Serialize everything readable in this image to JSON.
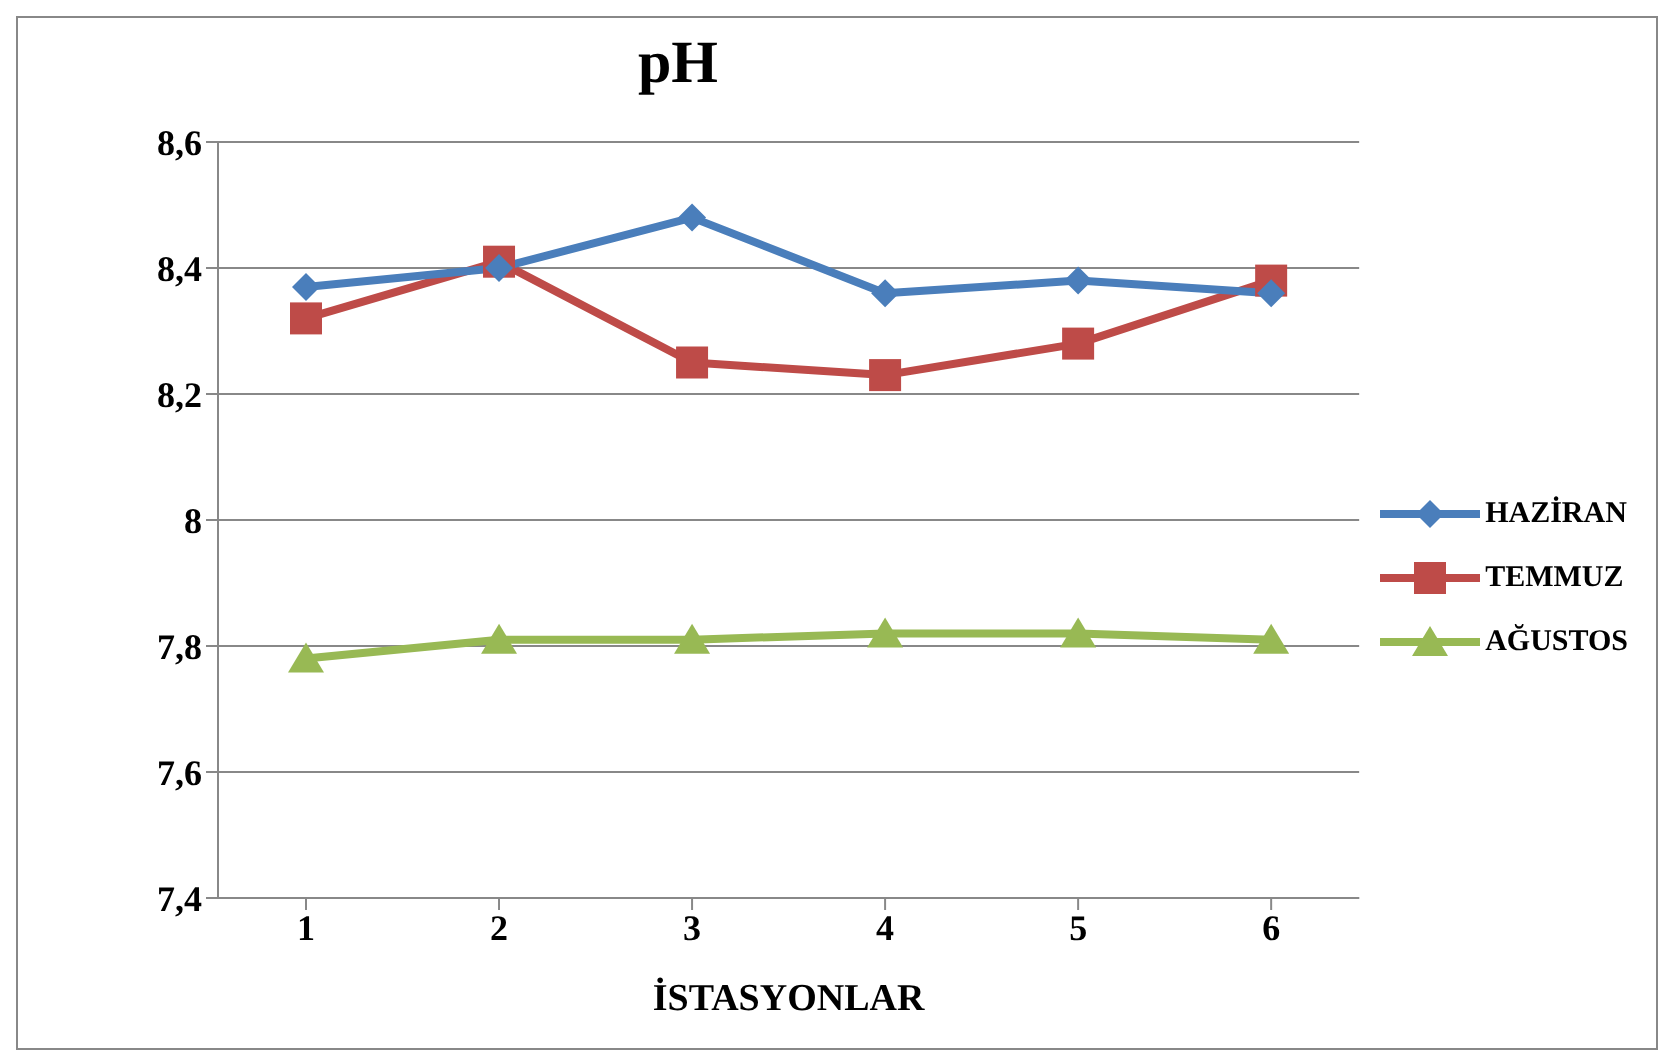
{
  "chart_data": {
    "type": "line",
    "title": "pH",
    "xlabel": "İSTASYONLAR",
    "categories": [
      "1",
      "2",
      "3",
      "4",
      "5",
      "6"
    ],
    "series": [
      {
        "name": "HAZİRAN",
        "color": "#4a7ebb",
        "marker": "diamond",
        "values": [
          8.37,
          8.4,
          8.48,
          8.36,
          8.38,
          8.36
        ]
      },
      {
        "name": "TEMMUZ",
        "color": "#be4b48",
        "marker": "square",
        "values": [
          8.32,
          8.41,
          8.25,
          8.23,
          8.28,
          8.38
        ]
      },
      {
        "name": "AĞUSTOS",
        "color": "#98b954",
        "marker": "triangle",
        "values": [
          7.78,
          7.81,
          7.81,
          7.82,
          7.82,
          7.81
        ]
      }
    ],
    "ylim": [
      7.4,
      8.6
    ],
    "yticks": [
      {
        "value": 7.4,
        "label": "7,4"
      },
      {
        "value": 7.6,
        "label": "7,6"
      },
      {
        "value": 7.8,
        "label": "7,8"
      },
      8,
      {
        "value": 8.2,
        "label": "8,2"
      },
      {
        "value": 8.4,
        "label": "8,4"
      },
      {
        "value": 8.6,
        "label": "8,6"
      }
    ],
    "grid": "y",
    "legend": "right",
    "line_style": "solid"
  }
}
